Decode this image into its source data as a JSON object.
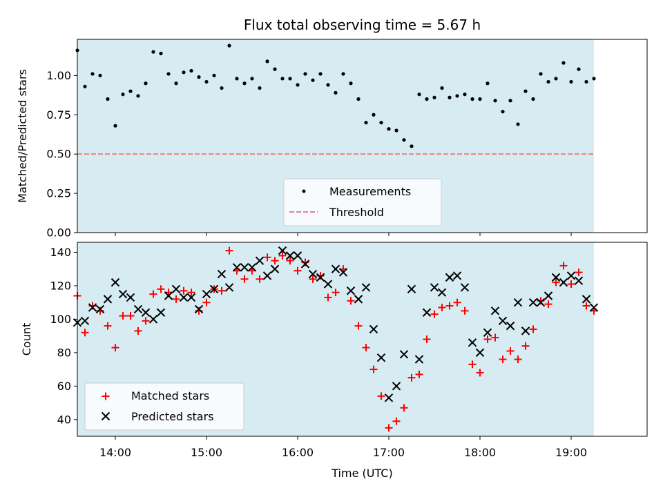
{
  "chart_data": [
    {
      "type": "scatter",
      "title": "Flux total observing time = 5.67 h",
      "xlabel": "",
      "ylabel": "Matched/Predicted stars",
      "xlim": [
        "13:35",
        "19:50"
      ],
      "ylim": [
        0,
        1.23
      ],
      "yticks": [
        "0.00",
        "0.25",
        "0.50",
        "0.75",
        "1.00"
      ],
      "observing_window": [
        "13:35",
        "19:15"
      ],
      "legend_position": "lower center",
      "series": [
        {
          "name": "Measurements",
          "marker": "dot",
          "color": "#000000",
          "points": [
            [
              "13:35",
              1.16
            ],
            [
              "13:40",
              0.93
            ],
            [
              "13:45",
              1.01
            ],
            [
              "13:50",
              1.0
            ],
            [
              "13:55",
              0.85
            ],
            [
              "14:00",
              0.68
            ],
            [
              "14:05",
              0.88
            ],
            [
              "14:10",
              0.9
            ],
            [
              "14:15",
              0.87
            ],
            [
              "14:20",
              0.95
            ],
            [
              "14:25",
              1.15
            ],
            [
              "14:30",
              1.14
            ],
            [
              "14:35",
              1.01
            ],
            [
              "14:40",
              0.95
            ],
            [
              "14:45",
              1.02
            ],
            [
              "14:50",
              1.03
            ],
            [
              "14:55",
              0.99
            ],
            [
              "15:00",
              0.96
            ],
            [
              "15:05",
              1.0
            ],
            [
              "15:10",
              0.92
            ],
            [
              "15:15",
              1.19
            ],
            [
              "15:20",
              0.98
            ],
            [
              "15:25",
              0.95
            ],
            [
              "15:30",
              0.98
            ],
            [
              "15:35",
              0.92
            ],
            [
              "15:40",
              1.09
            ],
            [
              "15:45",
              1.04
            ],
            [
              "15:50",
              0.98
            ],
            [
              "15:55",
              0.98
            ],
            [
              "16:00",
              0.94
            ],
            [
              "16:05",
              1.01
            ],
            [
              "16:10",
              0.97
            ],
            [
              "16:15",
              1.01
            ],
            [
              "16:20",
              0.94
            ],
            [
              "16:25",
              0.89
            ],
            [
              "16:30",
              1.01
            ],
            [
              "16:35",
              0.95
            ],
            [
              "16:40",
              0.85
            ],
            [
              "16:45",
              0.7
            ],
            [
              "16:50",
              0.75
            ],
            [
              "16:55",
              0.7
            ],
            [
              "17:00",
              0.66
            ],
            [
              "17:05",
              0.65
            ],
            [
              "17:10",
              0.59
            ],
            [
              "17:15",
              0.55
            ],
            [
              "17:20",
              0.88
            ],
            [
              "17:25",
              0.85
            ],
            [
              "17:30",
              0.86
            ],
            [
              "17:35",
              0.92
            ],
            [
              "17:40",
              0.86
            ],
            [
              "17:45",
              0.87
            ],
            [
              "17:50",
              0.88
            ],
            [
              "17:55",
              0.85
            ],
            [
              "18:00",
              0.85
            ],
            [
              "18:05",
              0.95
            ],
            [
              "18:10",
              0.84
            ],
            [
              "18:15",
              0.77
            ],
            [
              "18:20",
              0.84
            ],
            [
              "18:25",
              0.69
            ],
            [
              "18:30",
              0.9
            ],
            [
              "18:35",
              0.85
            ],
            [
              "18:40",
              1.01
            ],
            [
              "18:45",
              0.96
            ],
            [
              "18:50",
              0.98
            ],
            [
              "18:55",
              1.08
            ],
            [
              "19:00",
              0.96
            ],
            [
              "19:05",
              1.04
            ],
            [
              "19:10",
              0.96
            ],
            [
              "19:15",
              0.98
            ]
          ]
        },
        {
          "name": "Threshold",
          "marker": "dashed-line",
          "color": "#f08080",
          "points": [
            [
              "13:35",
              0.5
            ],
            [
              "19:15",
              0.5
            ]
          ]
        }
      ]
    },
    {
      "type": "scatter",
      "title": "",
      "xlabel": "Time (UTC)",
      "ylabel": "Count",
      "xlim": [
        "13:35",
        "19:50"
      ],
      "ylim": [
        30,
        146
      ],
      "yticks": [
        "40",
        "60",
        "80",
        "100",
        "120",
        "140"
      ],
      "xticks": [
        "14:00",
        "15:00",
        "16:00",
        "17:00",
        "18:00",
        "19:00"
      ],
      "observing_window": [
        "13:35",
        "19:15"
      ],
      "legend_position": "lower left",
      "series": [
        {
          "name": "Matched stars",
          "marker": "plus",
          "color": "#ff0000",
          "points": [
            [
              "13:35",
              114
            ],
            [
              "13:40",
              92
            ],
            [
              "13:45",
              108
            ],
            [
              "13:50",
              105
            ],
            [
              "13:55",
              96
            ],
            [
              "14:00",
              83
            ],
            [
              "14:05",
              102
            ],
            [
              "14:10",
              102
            ],
            [
              "14:15",
              93
            ],
            [
              "14:20",
              99
            ],
            [
              "14:25",
              115
            ],
            [
              "14:30",
              118
            ],
            [
              "14:35",
              116
            ],
            [
              "14:40",
              112
            ],
            [
              "14:45",
              117
            ],
            [
              "14:50",
              116
            ],
            [
              "14:55",
              105
            ],
            [
              "15:00",
              110
            ],
            [
              "15:05",
              118
            ],
            [
              "15:10",
              117
            ],
            [
              "15:15",
              141
            ],
            [
              "15:20",
              129
            ],
            [
              "15:25",
              124
            ],
            [
              "15:30",
              129
            ],
            [
              "15:35",
              124
            ],
            [
              "15:40",
              137
            ],
            [
              "15:45",
              135
            ],
            [
              "15:50",
              138
            ],
            [
              "15:55",
              135
            ],
            [
              "16:00",
              129
            ],
            [
              "16:05",
              134
            ],
            [
              "16:10",
              124
            ],
            [
              "16:15",
              126
            ],
            [
              "16:20",
              113
            ],
            [
              "16:25",
              116
            ],
            [
              "16:30",
              130
            ],
            [
              "16:35",
              111
            ],
            [
              "16:40",
              96
            ],
            [
              "16:45",
              83
            ],
            [
              "16:50",
              70
            ],
            [
              "16:55",
              54
            ],
            [
              "17:00",
              35
            ],
            [
              "17:05",
              39
            ],
            [
              "17:10",
              47
            ],
            [
              "17:15",
              65
            ],
            [
              "17:20",
              67
            ],
            [
              "17:25",
              88
            ],
            [
              "17:30",
              103
            ],
            [
              "17:35",
              107
            ],
            [
              "17:40",
              108
            ],
            [
              "17:45",
              110
            ],
            [
              "17:50",
              105
            ],
            [
              "17:55",
              73
            ],
            [
              "18:00",
              68
            ],
            [
              "18:05",
              88
            ],
            [
              "18:10",
              89
            ],
            [
              "18:15",
              76
            ],
            [
              "18:20",
              81
            ],
            [
              "18:25",
              76
            ],
            [
              "18:30",
              84
            ],
            [
              "18:35",
              94
            ],
            [
              "18:40",
              111
            ],
            [
              "18:45",
              109
            ],
            [
              "18:50",
              122
            ],
            [
              "18:55",
              132
            ],
            [
              "19:00",
              121
            ],
            [
              "19:05",
              128
            ],
            [
              "19:10",
              108
            ],
            [
              "19:15",
              105
            ]
          ]
        },
        {
          "name": "Predicted stars",
          "marker": "x",
          "color": "#000000",
          "points": [
            [
              "13:35",
              98
            ],
            [
              "13:40",
              99
            ],
            [
              "13:45",
              107
            ],
            [
              "13:50",
              106
            ],
            [
              "13:55",
              112
            ],
            [
              "14:00",
              122
            ],
            [
              "14:05",
              115
            ],
            [
              "14:10",
              113
            ],
            [
              "14:15",
              106
            ],
            [
              "14:20",
              104
            ],
            [
              "14:25",
              100
            ],
            [
              "14:30",
              104
            ],
            [
              "14:35",
              114
            ],
            [
              "14:40",
              118
            ],
            [
              "14:45",
              113
            ],
            [
              "14:50",
              113
            ],
            [
              "14:55",
              106
            ],
            [
              "15:00",
              115
            ],
            [
              "15:05",
              118
            ],
            [
              "15:10",
              127
            ],
            [
              "15:15",
              119
            ],
            [
              "15:20",
              131
            ],
            [
              "15:25",
              131
            ],
            [
              "15:30",
              131
            ],
            [
              "15:35",
              135
            ],
            [
              "15:40",
              126
            ],
            [
              "15:45",
              130
            ],
            [
              "15:50",
              141
            ],
            [
              "15:55",
              138
            ],
            [
              "16:00",
              138
            ],
            [
              "16:05",
              133
            ],
            [
              "16:10",
              127
            ],
            [
              "16:15",
              125
            ],
            [
              "16:20",
              121
            ],
            [
              "16:25",
              130
            ],
            [
              "16:30",
              128
            ],
            [
              "16:35",
              117
            ],
            [
              "16:40",
              112
            ],
            [
              "16:45",
              119
            ],
            [
              "16:50",
              94
            ],
            [
              "16:55",
              77
            ],
            [
              "17:00",
              53
            ],
            [
              "17:05",
              60
            ],
            [
              "17:10",
              79
            ],
            [
              "17:15",
              118
            ],
            [
              "17:20",
              76
            ],
            [
              "17:25",
              104
            ],
            [
              "17:30",
              119
            ],
            [
              "17:35",
              116
            ],
            [
              "17:40",
              125
            ],
            [
              "17:45",
              126
            ],
            [
              "17:50",
              119
            ],
            [
              "17:55",
              86
            ],
            [
              "18:00",
              80
            ],
            [
              "18:05",
              92
            ],
            [
              "18:10",
              105
            ],
            [
              "18:15",
              99
            ],
            [
              "18:20",
              96
            ],
            [
              "18:25",
              110
            ],
            [
              "18:30",
              93
            ],
            [
              "18:35",
              110
            ],
            [
              "18:40",
              110
            ],
            [
              "18:45",
              114
            ],
            [
              "18:50",
              125
            ],
            [
              "18:55",
              122
            ],
            [
              "19:00",
              126
            ],
            [
              "19:05",
              123
            ],
            [
              "19:10",
              112
            ],
            [
              "19:15",
              107
            ]
          ]
        }
      ]
    }
  ]
}
